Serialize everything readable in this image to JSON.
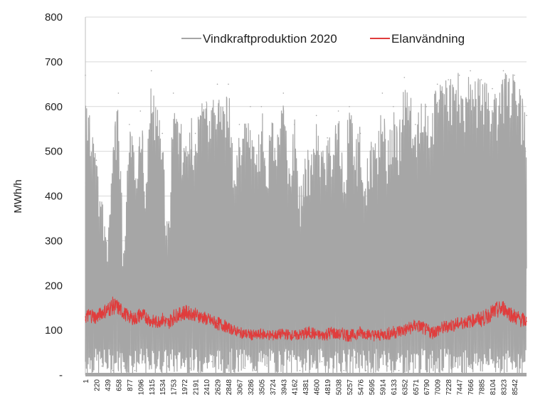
{
  "chart_data": {
    "type": "line",
    "title": "",
    "xlabel": "",
    "ylabel": "MWh/h",
    "ylim": [
      0,
      800
    ],
    "xlim": [
      1,
      8784
    ],
    "grid": true,
    "legend_position": "top-right",
    "y_ticks": [
      {
        "value": 0,
        "label": "-"
      },
      {
        "value": 100,
        "label": "100"
      },
      {
        "value": 200,
        "label": "200"
      },
      {
        "value": 300,
        "label": "300"
      },
      {
        "value": 400,
        "label": "400"
      },
      {
        "value": 500,
        "label": "500"
      },
      {
        "value": 600,
        "label": "600"
      },
      {
        "value": 700,
        "label": "700"
      },
      {
        "value": 800,
        "label": "800"
      }
    ],
    "x_ticks": [
      "1",
      "220",
      "439",
      "658",
      "877",
      "1096",
      "1315",
      "1534",
      "1753",
      "1972",
      "2191",
      "2410",
      "2629",
      "2848",
      "3067",
      "3286",
      "3505",
      "3724",
      "3943",
      "4162",
      "4381",
      "4600",
      "4819",
      "5038",
      "5257",
      "5476",
      "5695",
      "5914",
      "6133",
      "6352",
      "6571",
      "6790",
      "7009",
      "7228",
      "7447",
      "7666",
      "7885",
      "8104",
      "8323",
      "8542"
    ],
    "series": [
      {
        "name": "Vindkraftproduktion 2020",
        "color": "#a6a6a6",
        "x": [
          1,
          110,
          220,
          330,
          439,
          548,
          658,
          768,
          877,
          986,
          1096,
          1206,
          1315,
          1424,
          1534,
          1644,
          1753,
          1862,
          1972,
          2082,
          2191,
          2300,
          2410,
          2520,
          2629,
          2738,
          2848,
          2958,
          3067,
          3176,
          3286,
          3396,
          3505,
          3614,
          3724,
          3834,
          3943,
          4052,
          4162,
          4272,
          4381,
          4490,
          4600,
          4710,
          4819,
          4928,
          5038,
          5148,
          5257,
          5366,
          5476,
          5586,
          5695,
          5804,
          5914,
          6024,
          6133,
          6242,
          6352,
          6462,
          6571,
          6680,
          6790,
          6900,
          7009,
          7118,
          7228,
          7338,
          7447,
          7556,
          7666,
          7776,
          7885,
          7994,
          8104,
          8214,
          8323,
          8432,
          8542,
          8652,
          8784
        ],
        "values": [
          670,
          40,
          480,
          20,
          300,
          10,
          630,
          20,
          560,
          10,
          590,
          50,
          680,
          30,
          540,
          20,
          630,
          120,
          500,
          15,
          540,
          60,
          610,
          30,
          650,
          40,
          650,
          20,
          560,
          15,
          600,
          10,
          600,
          20,
          560,
          30,
          630,
          40,
          560,
          10,
          460,
          60,
          580,
          30,
          530,
          20,
          590,
          10,
          600,
          40,
          540,
          10,
          510,
          60,
          630,
          20,
          600,
          10,
          665,
          50,
          560,
          20,
          600,
          40,
          650,
          230,
          660,
          210,
          670,
          190,
          680,
          120,
          660,
          150,
          640,
          30,
          680,
          40,
          670,
          380,
          580
        ],
        "envelope_max": [
          675,
          560,
          520,
          400,
          340,
          520,
          635,
          250,
          600,
          480,
          610,
          460,
          680,
          600,
          560,
          330,
          640,
          600,
          520,
          580,
          560,
          620,
          640,
          600,
          655,
          640,
          655,
          460,
          580,
          560,
          620,
          480,
          610,
          520,
          580,
          560,
          630,
          480,
          580,
          420,
          520,
          490,
          590,
          500,
          540,
          560,
          610,
          480,
          615,
          520,
          560,
          480,
          530,
          540,
          640,
          520,
          610,
          560,
          665,
          640,
          590,
          620,
          620,
          600,
          660,
          650,
          670,
          665,
          680,
          660,
          680,
          670,
          670,
          665,
          650,
          640,
          680,
          675,
          675,
          640,
          600
        ],
        "envelope_min": [
          0,
          0,
          0,
          0,
          0,
          0,
          0,
          0,
          0,
          0,
          0,
          0,
          0,
          0,
          0,
          0,
          0,
          0,
          0,
          0,
          0,
          0,
          0,
          0,
          0,
          0,
          0,
          0,
          0,
          0,
          0,
          0,
          0,
          0,
          0,
          0,
          0,
          0,
          0,
          0,
          0,
          0,
          0,
          0,
          0,
          0,
          0,
          0,
          0,
          0,
          0,
          0,
          0,
          0,
          0,
          0,
          0,
          0,
          0,
          0,
          0,
          0,
          0,
          0,
          0,
          0,
          0,
          0,
          0,
          0,
          0,
          0,
          0,
          0,
          0,
          0,
          0,
          0,
          0,
          0,
          0
        ]
      },
      {
        "name": "Elanvändning",
        "color": "#e03c3c",
        "x": [
          1,
          110,
          220,
          330,
          439,
          548,
          658,
          768,
          877,
          986,
          1096,
          1206,
          1315,
          1424,
          1534,
          1644,
          1753,
          1862,
          1972,
          2082,
          2191,
          2300,
          2410,
          2520,
          2629,
          2738,
          2848,
          2958,
          3067,
          3176,
          3286,
          3396,
          3505,
          3614,
          3724,
          3834,
          3943,
          4052,
          4162,
          4272,
          4381,
          4490,
          4600,
          4710,
          4819,
          4928,
          5038,
          5148,
          5257,
          5366,
          5476,
          5586,
          5695,
          5804,
          5914,
          6024,
          6133,
          6242,
          6352,
          6462,
          6571,
          6680,
          6790,
          6900,
          7009,
          7118,
          7228,
          7338,
          7447,
          7556,
          7666,
          7776,
          7885,
          7994,
          8104,
          8214,
          8323,
          8432,
          8542,
          8652,
          8784
        ],
        "values": [
          130,
          135,
          128,
          140,
          145,
          155,
          150,
          138,
          130,
          125,
          135,
          130,
          120,
          118,
          125,
          115,
          130,
          135,
          140,
          138,
          135,
          130,
          125,
          120,
          115,
          112,
          105,
          100,
          95,
          92,
          90,
          88,
          92,
          90,
          88,
          90,
          92,
          90,
          88,
          90,
          92,
          95,
          90,
          88,
          92,
          95,
          90,
          92,
          88,
          90,
          95,
          92,
          90,
          88,
          90,
          92,
          95,
          98,
          100,
          105,
          110,
          108,
          100,
          95,
          100,
          105,
          110,
          112,
          115,
          118,
          120,
          125,
          125,
          130,
          140,
          145,
          150,
          140,
          130,
          125,
          120
        ],
        "band": [
          15,
          18,
          15,
          15,
          18,
          20,
          18,
          15,
          15,
          15,
          18,
          15,
          15,
          15,
          15,
          15,
          18,
          15,
          18,
          15,
          15,
          15,
          15,
          15,
          15,
          15,
          12,
          12,
          12,
          12,
          12,
          12,
          12,
          12,
          12,
          12,
          12,
          12,
          12,
          12,
          15,
          15,
          12,
          12,
          15,
          15,
          12,
          15,
          15,
          12,
          15,
          12,
          12,
          15,
          12,
          15,
          15,
          15,
          15,
          15,
          15,
          15,
          15,
          15,
          15,
          15,
          15,
          15,
          15,
          15,
          15,
          15,
          18,
          18,
          18,
          20,
          18,
          18,
          18,
          18,
          15
        ]
      }
    ]
  }
}
